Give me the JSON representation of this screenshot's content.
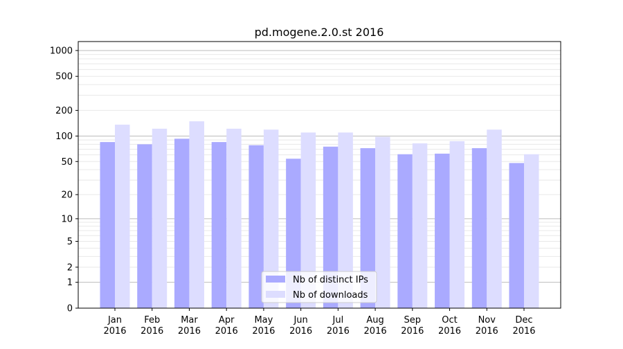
{
  "chart_data": {
    "type": "bar",
    "title": "pd.mogene.2.0.st 2016",
    "xlabel": "",
    "ylabel": "",
    "yscale": "log10(1+y)",
    "ylim": [
      0,
      1300
    ],
    "yticks": [
      0,
      1,
      2,
      5,
      10,
      20,
      50,
      100,
      200,
      500,
      1000
    ],
    "grid": true,
    "legend_position": "bottom-center",
    "categories": [
      "Jan\n2016",
      "Feb\n2016",
      "Mar\n2016",
      "Apr\n2016",
      "May\n2016",
      "Jun\n2016",
      "Jul\n2016",
      "Aug\n2016",
      "Sep\n2016",
      "Oct\n2016",
      "Nov\n2016",
      "Dec\n2016"
    ],
    "series": [
      {
        "name": "Nb of distinct IPs",
        "color": "#aaaaff",
        "values": [
          85,
          80,
          93,
          85,
          78,
          54,
          75,
          72,
          61,
          62,
          72,
          48
        ]
      },
      {
        "name": "Nb of downloads",
        "color": "#ddddff",
        "values": [
          136,
          122,
          149,
          122,
          119,
          110,
          110,
          98,
          82,
          87,
          119,
          61
        ]
      }
    ]
  }
}
